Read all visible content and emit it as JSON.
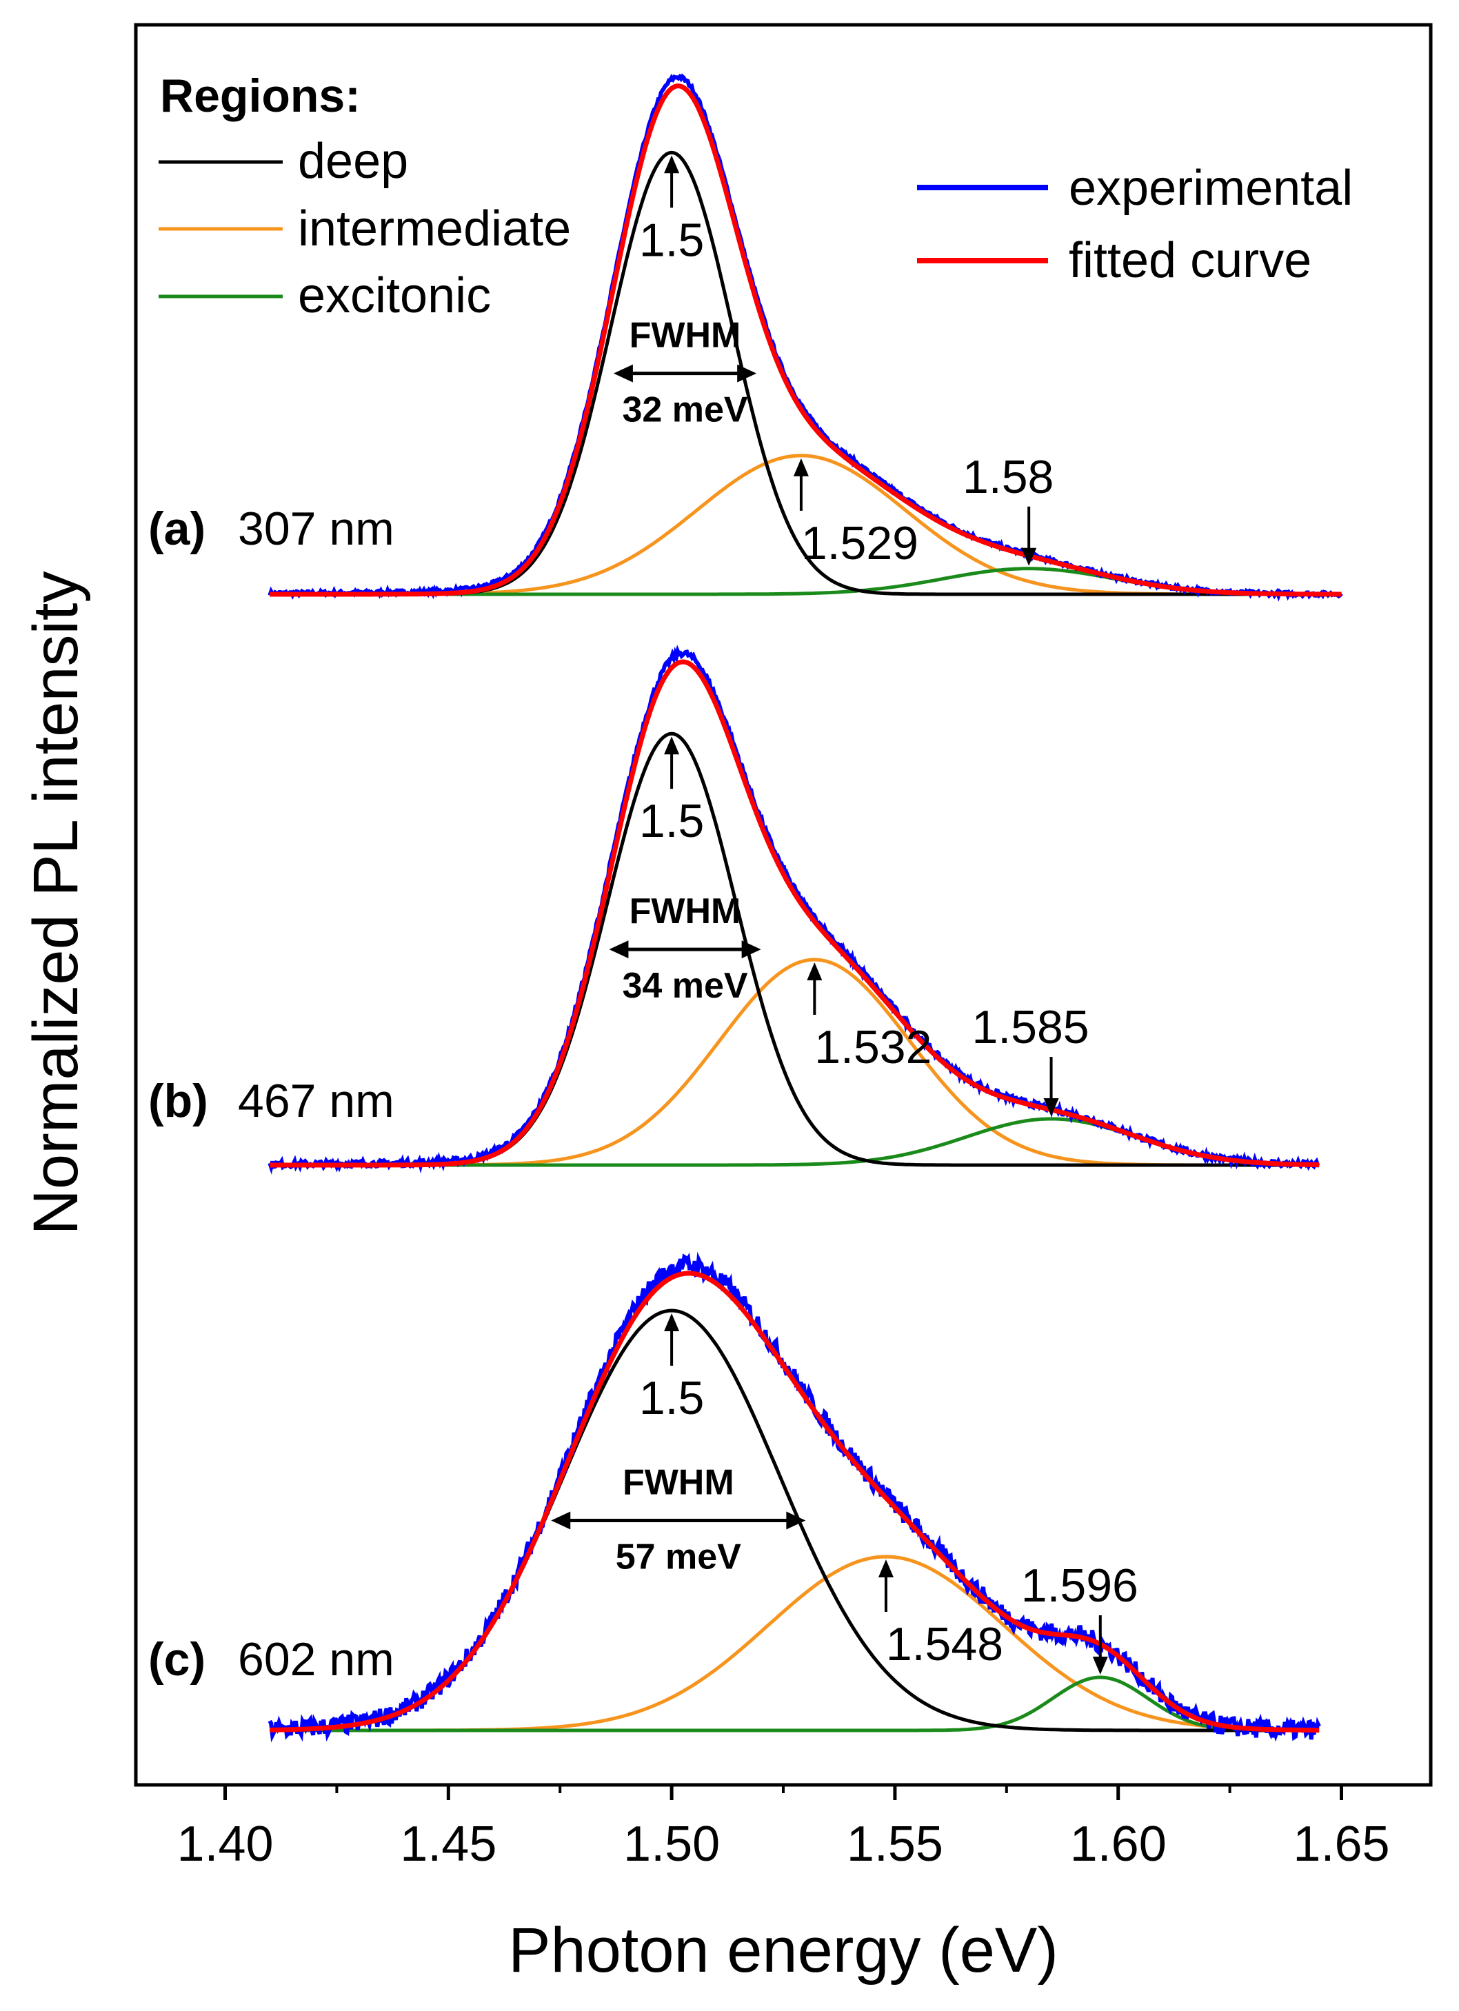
{
  "chart_data": {
    "type": "line",
    "xlabel": "Photon energy (eV)",
    "ylabel": "Normalized PL intensity",
    "xlim": [
      1.38,
      1.67
    ],
    "x_ticks": [
      "1.40",
      "1.45",
      "1.50",
      "1.55",
      "1.60",
      "1.65"
    ],
    "y_ticks": [],
    "grid": false,
    "legend": {
      "regions_title": "Regions:",
      "regions": [
        {
          "label": "deep",
          "color": "#000000"
        },
        {
          "label": "intermediate",
          "color": "#f7941d"
        },
        {
          "label": "excitonic",
          "color": "#1a8a1a"
        }
      ],
      "curves": [
        {
          "label": "experimental",
          "color": "#0000ff"
        },
        {
          "label": "fitted curve",
          "color": "#ff0000"
        }
      ],
      "placement": "top"
    },
    "panels": [
      {
        "letter": "(a)",
        "wavelength": "307 nm",
        "x_range": [
          1.41,
          1.65
        ],
        "components": {
          "deep": {
            "center": 1.5,
            "amplitude": 0.86,
            "fwhm_meV": 32
          },
          "intermediate": {
            "center": 1.529,
            "amplitude": 0.27,
            "fwhm_meV": 55
          },
          "excitonic": {
            "center": 1.58,
            "amplitude": 0.05,
            "fwhm_meV": 45
          }
        },
        "peak_labels": [
          "1.5",
          "1.529",
          "1.58"
        ],
        "fwhm_label": "FWHM",
        "fwhm_value": "32 meV",
        "fwhm_x": [
          1.487,
          1.519
        ]
      },
      {
        "letter": "(b)",
        "wavelength": "467 nm",
        "x_range": [
          1.41,
          1.645
        ],
        "components": {
          "deep": {
            "center": 1.5,
            "amplitude": 0.84,
            "fwhm_meV": 34
          },
          "intermediate": {
            "center": 1.532,
            "amplitude": 0.4,
            "fwhm_meV": 50
          },
          "excitonic": {
            "center": 1.585,
            "amplitude": 0.09,
            "fwhm_meV": 45
          }
        },
        "peak_labels": [
          "1.5",
          "1.532",
          "1.585"
        ],
        "fwhm_label": "FWHM",
        "fwhm_value": "34 meV",
        "fwhm_x": [
          1.486,
          1.52
        ]
      },
      {
        "letter": "(c)",
        "wavelength": "602 nm",
        "x_range": [
          1.41,
          1.645
        ],
        "components": {
          "deep": {
            "center": 1.5,
            "amplitude": 0.87,
            "fwhm_meV": 57
          },
          "intermediate": {
            "center": 1.548,
            "amplitude": 0.36,
            "fwhm_meV": 62
          },
          "excitonic": {
            "center": 1.596,
            "amplitude": 0.11,
            "fwhm_meV": 25
          }
        },
        "peak_labels": [
          "1.5",
          "1.548",
          "1.596"
        ],
        "fwhm_label": "FWHM",
        "fwhm_value": "57 meV",
        "fwhm_x": [
          1.473,
          1.53
        ]
      }
    ]
  }
}
